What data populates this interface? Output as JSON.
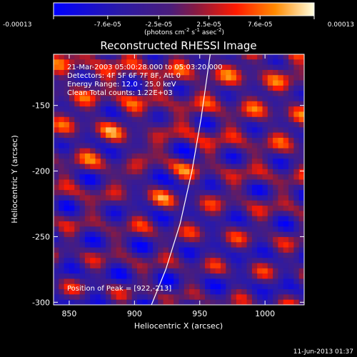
{
  "chart_data": {
    "type": "heatmap",
    "title": "Reconstructed RHESSI Image",
    "xlabel": "Heliocentric X (arcsec)",
    "ylabel": "Heliocentric Y (arcsec)",
    "xlim": [
      838,
      1030
    ],
    "ylim": [
      -302,
      -111
    ],
    "xticks": [
      850,
      900,
      950,
      1000
    ],
    "xtick_labels": [
      "850",
      "900",
      "950",
      "1000"
    ],
    "yticks": [
      -150,
      -200,
      -250,
      -300
    ],
    "ytick_labels": [
      "-150",
      "-200",
      "-250",
      "-300"
    ],
    "colorbar": {
      "ticks": [
        -0.00013,
        -7.6e-05,
        -2.5e-05,
        2.5e-05,
        7.6e-05,
        0.00013
      ],
      "tick_labels": [
        "-0.00013",
        "-7.6e-05",
        "-2.5e-05",
        "2.5e-05",
        "7.6e-05",
        "0.00013"
      ],
      "unit_line": "(photons cm",
      "unit_exp1": "-2",
      "unit_mid": " s",
      "unit_exp2": "-1",
      "unit_end": " asec",
      "unit_exp3": "-2",
      "unit_close": ")"
    },
    "annotations": [
      "21-Mar-2003 05:00:28.000 to 05:03:20.000",
      "Detectors: 4F 5F 6F 7F 8F, Att 0",
      "Energy Range: 12.0 - 25.0 keV",
      "Clean     Total counts: 1.22E+03"
    ],
    "peak_label": "Position of Peak = [922,-213]",
    "peak": [
      922,
      -213
    ],
    "limb_curve": [
      [
        913,
        -302
      ],
      [
        924,
        -275
      ],
      [
        935,
        -240
      ],
      [
        944,
        -200
      ],
      [
        951,
        -160
      ],
      [
        958,
        -111
      ]
    ],
    "timestamp": "11-Jun-2013 01:37"
  }
}
